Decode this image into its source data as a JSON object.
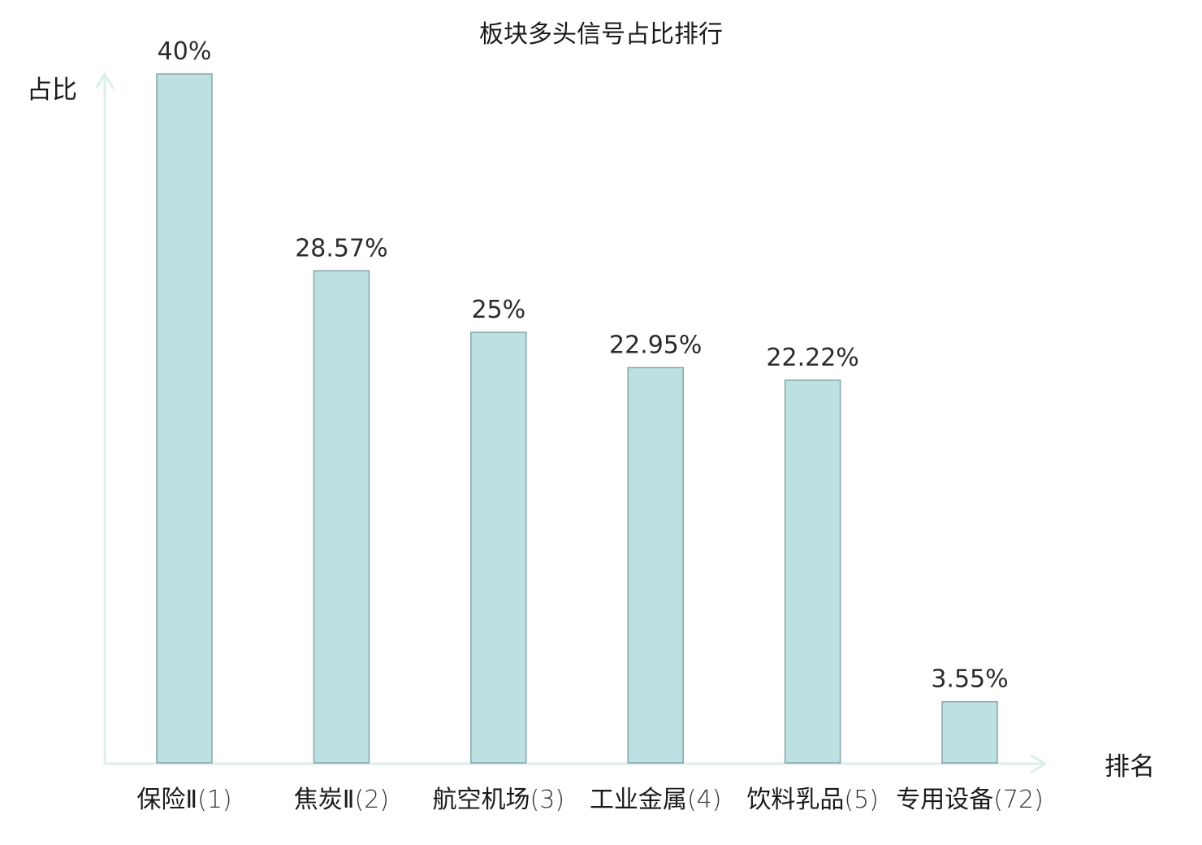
{
  "chart_data": {
    "type": "bar",
    "title": "板块多头信号占比排行",
    "ylabel": "占比",
    "xlabel": "排名",
    "categories": [
      "保险Ⅱ",
      "焦炭Ⅱ",
      "航空机场",
      "工业金属",
      "饮料乳品",
      "专用设备"
    ],
    "ranks": [
      "(1)",
      "(2)",
      "(3)",
      "(4)",
      "(5)",
      "(72)"
    ],
    "highlight": [
      false,
      false,
      false,
      false,
      false,
      true
    ],
    "values": [
      40,
      28.57,
      25,
      22.95,
      22.22,
      3.55
    ],
    "value_labels": [
      "40%",
      "28.57%",
      "25%",
      "22.95%",
      "22.22%",
      "3.55%"
    ],
    "ylim": [
      0,
      40
    ],
    "grid": false,
    "legend": "none",
    "colors": {
      "bar_fill": "#bde0e2",
      "bar_stroke": "#86a6a8",
      "axis": "#dcefec",
      "highlight_text": "#e02020",
      "text": "#1a1a1a"
    }
  }
}
